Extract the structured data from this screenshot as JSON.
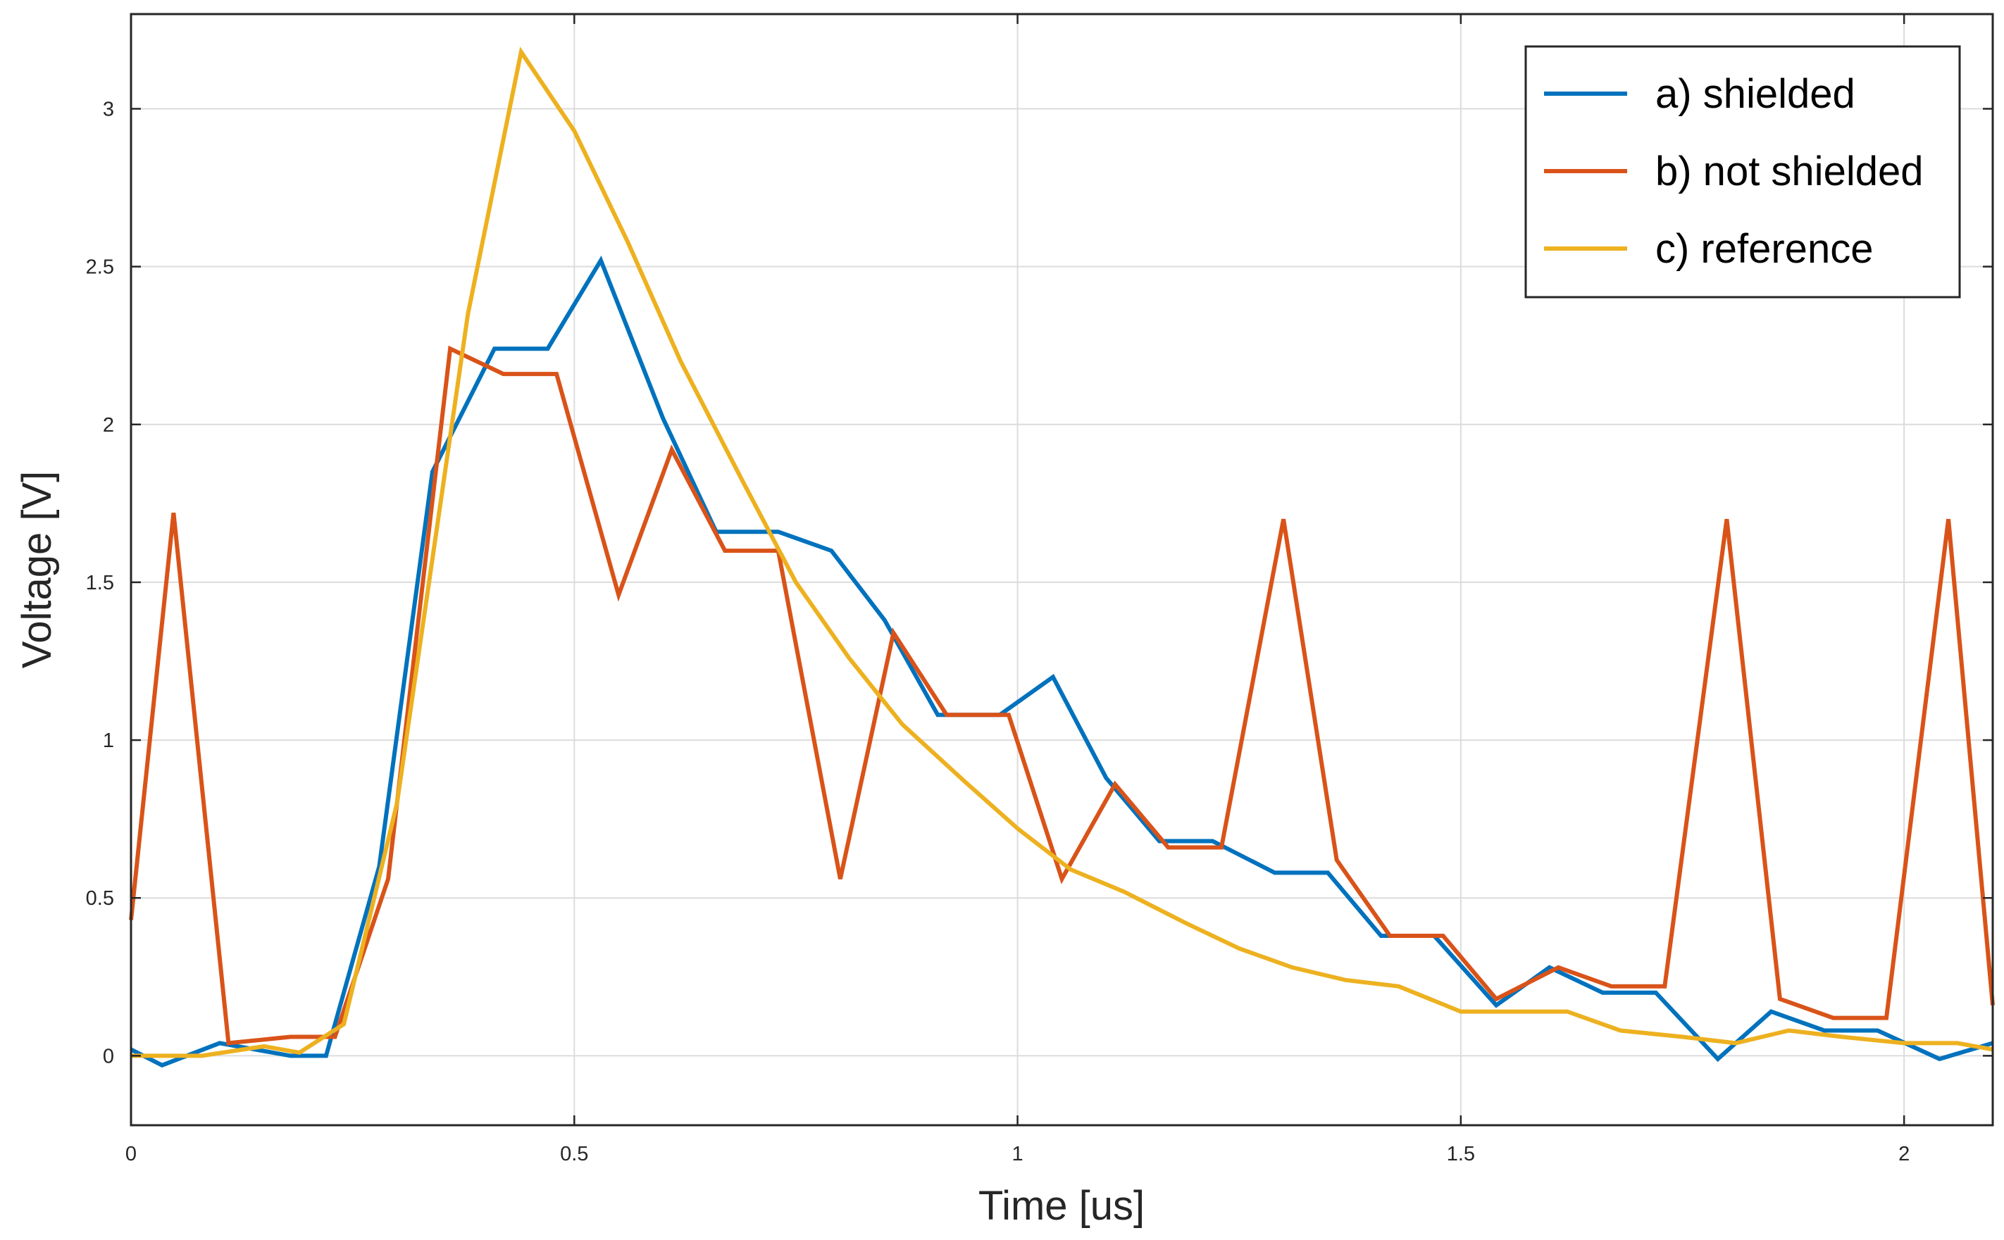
{
  "chart_data": {
    "type": "line",
    "xlabel": "Time [us]",
    "ylabel": "Voltage [V]",
    "xlim": [
      0,
      2.1
    ],
    "ylim": [
      -0.22,
      3.3
    ],
    "xticks": [
      0,
      0.5,
      1,
      1.5,
      2
    ],
    "xtick_labels": [
      "0",
      "0.5",
      "1",
      "1.5",
      "2"
    ],
    "yticks": [
      0,
      0.5,
      1,
      1.5,
      2,
      2.5,
      3
    ],
    "ytick_labels": [
      "0",
      "0.5",
      "1",
      "1.5",
      "2",
      "2.5",
      "3"
    ],
    "grid": true,
    "legend_position": "top-right",
    "series": [
      {
        "name": "a) shielded",
        "color": "#0072BD",
        "x": [
          0,
          0.035,
          0.1,
          0.18,
          0.22,
          0.28,
          0.34,
          0.41,
          0.47,
          0.53,
          0.6,
          0.66,
          0.73,
          0.79,
          0.85,
          0.91,
          0.98,
          1.04,
          1.1,
          1.16,
          1.22,
          1.29,
          1.35,
          1.41,
          1.47,
          1.54,
          1.6,
          1.66,
          1.72,
          1.79,
          1.85,
          1.91,
          1.97,
          2.04,
          2.1
        ],
        "y": [
          0.02,
          -0.03,
          0.04,
          0.0,
          0.0,
          0.6,
          1.85,
          2.24,
          2.24,
          2.52,
          2.02,
          1.66,
          1.66,
          1.6,
          1.38,
          1.08,
          1.08,
          1.2,
          0.88,
          0.68,
          0.68,
          0.58,
          0.58,
          0.38,
          0.38,
          0.16,
          0.28,
          0.2,
          0.2,
          -0.01,
          0.14,
          0.08,
          0.08,
          -0.01,
          0.04
        ]
      },
      {
        "name": "b) not shielded",
        "color": "#D95319",
        "x": [
          0,
          0.048,
          0.11,
          0.18,
          0.23,
          0.29,
          0.36,
          0.42,
          0.48,
          0.55,
          0.61,
          0.67,
          0.73,
          0.8,
          0.86,
          0.92,
          0.99,
          1.05,
          1.11,
          1.17,
          1.23,
          1.3,
          1.36,
          1.42,
          1.48,
          1.54,
          1.61,
          1.67,
          1.73,
          1.8,
          1.86,
          1.92,
          1.98,
          2.05,
          2.1
        ],
        "y": [
          0.43,
          1.72,
          0.04,
          0.06,
          0.06,
          0.56,
          2.24,
          2.16,
          2.16,
          1.46,
          1.92,
          1.6,
          1.6,
          0.56,
          1.34,
          1.08,
          1.08,
          0.56,
          0.86,
          0.66,
          0.66,
          1.7,
          0.62,
          0.38,
          0.38,
          0.18,
          0.28,
          0.22,
          0.22,
          1.7,
          0.18,
          0.12,
          0.12,
          1.7,
          0.16
        ]
      },
      {
        "name": "c) reference",
        "color": "#EDB120",
        "x": [
          0,
          0.08,
          0.15,
          0.19,
          0.24,
          0.3,
          0.38,
          0.44,
          0.5,
          0.56,
          0.62,
          0.69,
          0.75,
          0.81,
          0.87,
          0.94,
          1.0,
          1.06,
          1.12,
          1.19,
          1.25,
          1.31,
          1.37,
          1.43,
          1.5,
          1.56,
          1.62,
          1.68,
          1.75,
          1.81,
          1.87,
          1.93,
          2.0,
          2.06,
          2.1
        ],
        "y": [
          0.0,
          0.0,
          0.03,
          0.01,
          0.1,
          0.8,
          2.35,
          3.18,
          2.93,
          2.58,
          2.2,
          1.82,
          1.5,
          1.26,
          1.05,
          0.87,
          0.72,
          0.59,
          0.52,
          0.42,
          0.34,
          0.28,
          0.24,
          0.22,
          0.14,
          0.14,
          0.14,
          0.08,
          0.06,
          0.04,
          0.08,
          0.06,
          0.04,
          0.04,
          0.02
        ]
      }
    ]
  }
}
